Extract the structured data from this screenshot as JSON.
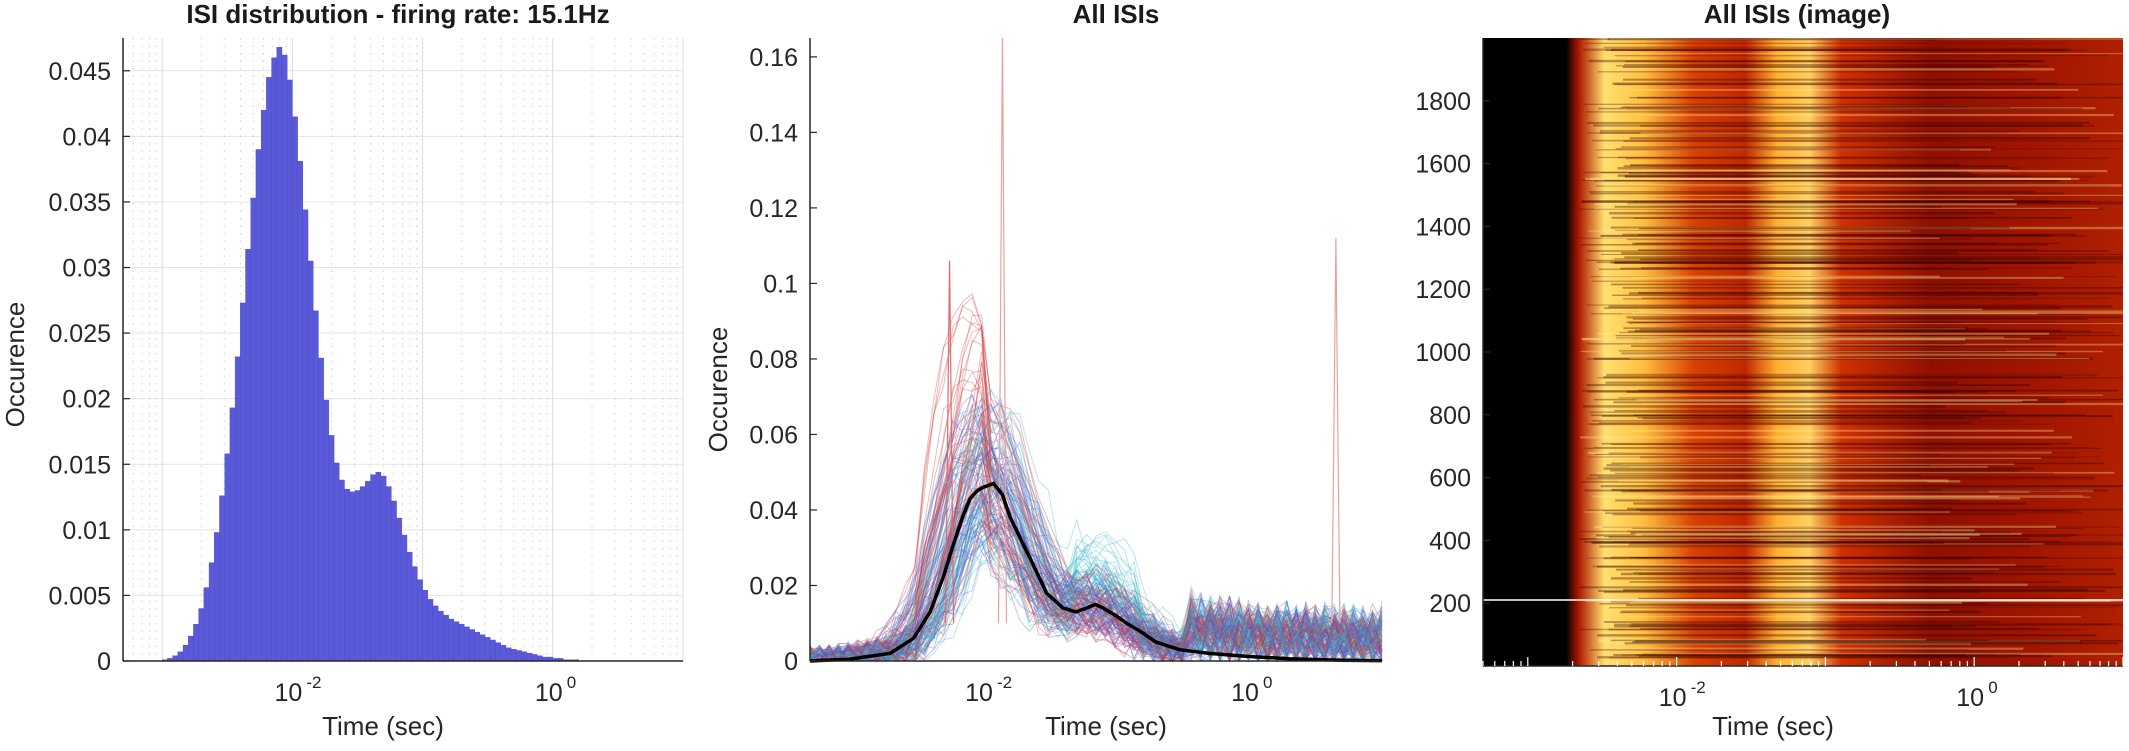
{
  "chart_data": [
    {
      "type": "bar",
      "title": "ISI distribution - firing rate: 15.1Hz",
      "xlabel": "Time (sec)",
      "ylabel": "Occurence",
      "x_scale": "log",
      "xlim": [
        0.0005,
        10
      ],
      "ylim": [
        0,
        0.0475
      ],
      "grid": true,
      "bar_color": "#5a5ad8",
      "x_ticks": [
        {
          "base": "10",
          "exp": "-2",
          "value": 0.01
        },
        {
          "base": "10",
          "exp": "0",
          "value": 1
        }
      ],
      "y_ticks": [
        "0",
        "0.005",
        "0.01",
        "0.015",
        "0.02",
        "0.025",
        "0.03",
        "0.035",
        "0.04",
        "0.045"
      ],
      "y_tick_values": [
        0,
        0.005,
        0.01,
        0.015,
        0.02,
        0.025,
        0.03,
        0.035,
        0.04,
        0.045
      ],
      "histogram": {
        "bin_edge_log10_start": -3.0,
        "bin_width_log10": 0.04,
        "values": [
          0.0001,
          0.0002,
          0.0004,
          0.0007,
          0.0012,
          0.0019,
          0.0028,
          0.004,
          0.0056,
          0.0075,
          0.0098,
          0.0126,
          0.0158,
          0.0193,
          0.0232,
          0.0273,
          0.0314,
          0.0353,
          0.039,
          0.042,
          0.0445,
          0.046,
          0.0468,
          0.0462,
          0.0443,
          0.0415,
          0.0381,
          0.0344,
          0.0305,
          0.0267,
          0.0231,
          0.0199,
          0.0172,
          0.0151,
          0.0138,
          0.0131,
          0.0129,
          0.013,
          0.0133,
          0.0137,
          0.0142,
          0.0144,
          0.0141,
          0.0133,
          0.0122,
          0.0109,
          0.0096,
          0.0083,
          0.0072,
          0.0062,
          0.0054,
          0.0047,
          0.0042,
          0.0038,
          0.0035,
          0.0032,
          0.003,
          0.0028,
          0.0026,
          0.0024,
          0.0022,
          0.002,
          0.0018,
          0.0016,
          0.0014,
          0.0012,
          0.001,
          0.0009,
          0.0008,
          0.0007,
          0.0006,
          0.0005,
          0.0004,
          0.0003,
          0.0003,
          0.0002,
          0.0002,
          0.0001,
          0.0001,
          0.0001
        ]
      }
    },
    {
      "type": "line",
      "title": "All ISIs",
      "xlabel": "Time (sec)",
      "ylabel": "Occurence",
      "x_scale": "log",
      "xlim": [
        0.0005,
        10
      ],
      "ylim": [
        0,
        0.165
      ],
      "grid": false,
      "x_ticks": [
        {
          "base": "10",
          "exp": "-2",
          "value": 0.01
        },
        {
          "base": "10",
          "exp": "0",
          "value": 1
        }
      ],
      "y_ticks": [
        "0",
        "0.02",
        "0.04",
        "0.06",
        "0.08",
        "0.1",
        "0.12",
        "0.14",
        "0.16"
      ],
      "y_tick_values": [
        0,
        0.02,
        0.04,
        0.06,
        0.08,
        0.1,
        0.12,
        0.14,
        0.16
      ],
      "series_colors": [
        "#d03a3a",
        "#4a5ad8",
        "#3ab8c8"
      ],
      "mean_series": {
        "color": "#000000",
        "x": [
          0.0005,
          0.001,
          0.002,
          0.003,
          0.004,
          0.005,
          0.006,
          0.007,
          0.008,
          0.009,
          0.01,
          0.012,
          0.014,
          0.016,
          0.02,
          0.025,
          0.03,
          0.04,
          0.05,
          0.06,
          0.07,
          0.08,
          0.1,
          0.12,
          0.15,
          0.2,
          0.3,
          0.5,
          1,
          2,
          5,
          10
        ],
        "y": [
          0,
          0.0005,
          0.002,
          0.006,
          0.013,
          0.022,
          0.031,
          0.038,
          0.043,
          0.045,
          0.046,
          0.047,
          0.044,
          0.038,
          0.031,
          0.024,
          0.018,
          0.014,
          0.013,
          0.014,
          0.015,
          0.014,
          0.012,
          0.01,
          0.008,
          0.005,
          0.003,
          0.002,
          0.0012,
          0.0006,
          0.0002,
          0.0001
        ]
      },
      "spike_series": [
        {
          "x": 0.014,
          "y": 0.165,
          "color": "#e8a0a0"
        },
        {
          "x": 0.0056,
          "y": 0.106,
          "color": "#e06a6a"
        },
        {
          "x": 4.5,
          "y": 0.112,
          "color": "#e8a0a0"
        }
      ]
    },
    {
      "type": "heatmap",
      "title": "All ISIs (image)",
      "xlabel": "Time (sec)",
      "ylabel": "",
      "x_scale": "log",
      "xlim": [
        0.0005,
        10
      ],
      "ylim": [
        0,
        2000
      ],
      "colormap": "hot",
      "x_ticks": [
        {
          "base": "10",
          "exp": "-2",
          "value": 0.01
        },
        {
          "base": "10",
          "exp": "0",
          "value": 1
        }
      ],
      "y_ticks": [
        "200",
        "400",
        "600",
        "800",
        "1000",
        "1200",
        "1400",
        "1600",
        "1800"
      ],
      "y_tick_values": [
        200,
        400,
        600,
        800,
        1000,
        1200,
        1400,
        1600,
        1800
      ],
      "rows": 1990,
      "bright_bands_log10": [
        -2.0,
        -1.0
      ]
    }
  ]
}
